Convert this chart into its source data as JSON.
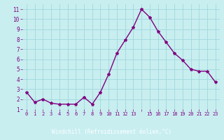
{
  "x": [
    0,
    1,
    2,
    3,
    4,
    5,
    6,
    7,
    8,
    9,
    10,
    11,
    12,
    13,
    14,
    15,
    16,
    17,
    18,
    19,
    20,
    21,
    22,
    23
  ],
  "y": [
    2.7,
    1.7,
    2.0,
    1.6,
    1.5,
    1.5,
    1.5,
    2.2,
    1.5,
    2.7,
    4.5,
    6.6,
    7.9,
    9.2,
    11.0,
    10.2,
    8.8,
    7.7,
    6.6,
    5.9,
    5.0,
    4.8,
    4.8,
    3.7
  ],
  "line_color": "#800080",
  "marker": "*",
  "marker_size": 3,
  "bg_color": "#c8eef0",
  "grid_color": "#a0d8dc",
  "xlabel": "Windchill (Refroidissement éolien,°C)",
  "xlabel_bg": "#800080",
  "xlabel_fg": "#ffffff",
  "tick_color": "#800080",
  "ylim": [
    1.0,
    11.5
  ],
  "xlim": [
    -0.5,
    23.5
  ],
  "yticks": [
    1,
    2,
    3,
    4,
    5,
    6,
    7,
    8,
    9,
    10,
    11
  ],
  "xticks": [
    0,
    1,
    2,
    3,
    4,
    5,
    6,
    7,
    8,
    9,
    10,
    11,
    12,
    13,
    14,
    15,
    16,
    17,
    18,
    19,
    20,
    21,
    22,
    23
  ],
  "xtick_labels": [
    "0",
    "1",
    "2",
    "3",
    "4",
    "5",
    "6",
    "7",
    "8",
    "9",
    "10",
    "11",
    "12",
    "13",
    "",
    "15",
    "16",
    "17",
    "18",
    "19",
    "20",
    "21",
    "22",
    "23"
  ],
  "line_width": 1.0,
  "bottom_bar_color": "#800080",
  "bottom_bar_height": 0.13
}
